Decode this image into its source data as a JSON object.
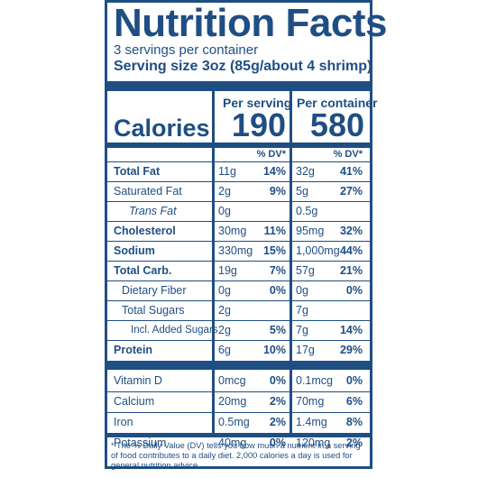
{
  "title": "Nutrition Facts",
  "servings": "3 servings per container",
  "serving_size": "Serving size  3oz (85g/about 4 shrimp)",
  "columns": {
    "per_serving": "Per serving",
    "per_container": "Per container",
    "dv_label": "% DV*"
  },
  "calories": {
    "label": "Calories",
    "serving": "190",
    "container": "580"
  },
  "nutrients": [
    {
      "name": "Total Fat",
      "amt1": "11g",
      "dv1": "14%",
      "amt2": "32g",
      "dv2": "41%"
    },
    {
      "name": "Saturated Fat",
      "amt1": "2g",
      "dv1": "9%",
      "amt2": "5g",
      "dv2": "27%"
    },
    {
      "name": "Trans Fat",
      "amt1": "0g",
      "dv1": "",
      "amt2": "0.5g",
      "dv2": ""
    },
    {
      "name": "Cholesterol",
      "amt1": "30mg",
      "dv1": "11%",
      "amt2": "95mg",
      "dv2": "32%"
    },
    {
      "name": "Sodium",
      "amt1": "330mg",
      "dv1": "15%",
      "amt2": "1,000mg",
      "dv2": "44%"
    },
    {
      "name": "Total Carb.",
      "amt1": "19g",
      "dv1": "7%",
      "amt2": "57g",
      "dv2": "21%"
    },
    {
      "name": "Dietary Fiber",
      "amt1": "0g",
      "dv1": "0%",
      "amt2": "0g",
      "dv2": "0%"
    },
    {
      "name": "Total Sugars",
      "amt1": "2g",
      "dv1": "",
      "amt2": "7g",
      "dv2": ""
    },
    {
      "name": "Incl. Added Sugars",
      "amt1": "2g",
      "dv1": "5%",
      "amt2": "7g",
      "dv2": "14%"
    },
    {
      "name": "Protein",
      "amt1": "6g",
      "dv1": "10%",
      "amt2": "17g",
      "dv2": "29%"
    }
  ],
  "vitamins": [
    {
      "name": "Vitamin D",
      "amt1": "0mcg",
      "dv1": "0%",
      "amt2": "0.1mcg",
      "dv2": "0%"
    },
    {
      "name": "Calcium",
      "amt1": "20mg",
      "dv1": "2%",
      "amt2": "70mg",
      "dv2": "6%"
    },
    {
      "name": "Iron",
      "amt1": "0.5mg",
      "dv1": "2%",
      "amt2": "1.4mg",
      "dv2": "8%"
    },
    {
      "name": "Potassium",
      "amt1": "40mg",
      "dv1": "0%",
      "amt2": "120mg",
      "dv2": "2%"
    }
  ],
  "footnote": "* The % Daily Value (DV) tells you how much a nutrient in a serving of food contributes to a daily diet. 2,000 calories a day is used for general nutrition advice.",
  "colors": {
    "label_blue": "#1f4e83",
    "background": "#ffffff"
  }
}
